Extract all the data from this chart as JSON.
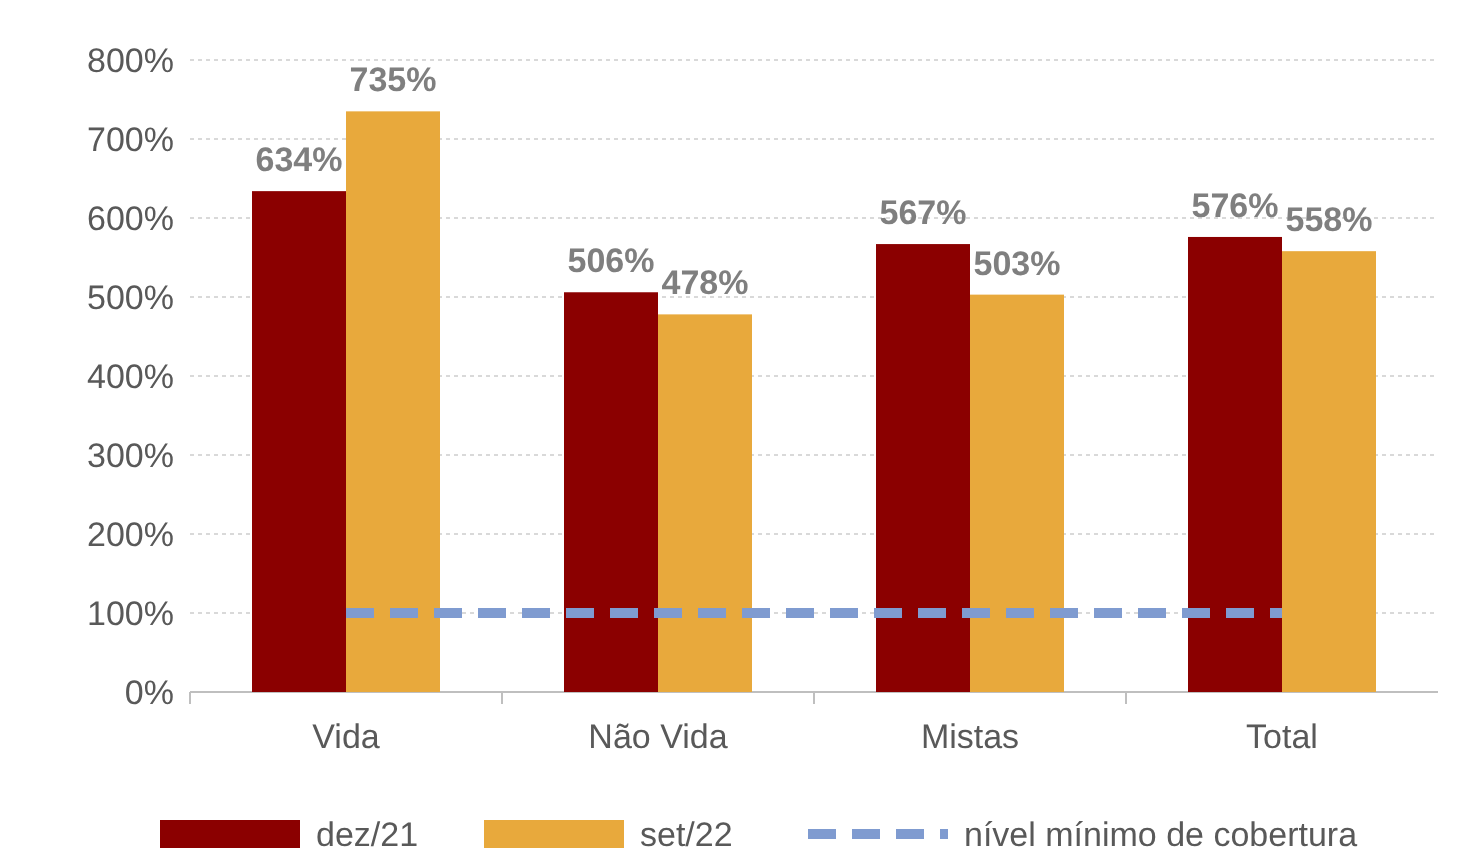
{
  "chart_data": {
    "type": "bar",
    "categories": [
      "Vida",
      "Não Vida",
      "Mistas",
      "Total"
    ],
    "series": [
      {
        "name": "dez/21",
        "color": "#8b0000",
        "values": [
          634,
          506,
          567,
          576
        ]
      },
      {
        "name": "set/22",
        "color": "#e8a93c",
        "values": [
          735,
          478,
          503,
          558
        ]
      },
      {
        "name": "nível mínimo de cobertura",
        "type": "line",
        "color": "#7f9bd0",
        "values": [
          100,
          100,
          100,
          100
        ],
        "line_style": "dashed"
      }
    ],
    "ylim": [
      0,
      800
    ],
    "yticks": [
      {
        "value": 0,
        "label": "0%"
      },
      {
        "value": 100,
        "label": "100%"
      },
      {
        "value": 200,
        "label": "200%"
      },
      {
        "value": 300,
        "label": "300%"
      },
      {
        "value": 400,
        "label": "400%"
      },
      {
        "value": 500,
        "label": "500%"
      },
      {
        "value": 600,
        "label": "600%"
      },
      {
        "value": 700,
        "label": "700%"
      },
      {
        "value": 800,
        "label": "800%"
      }
    ],
    "value_labels": [
      [
        "634%",
        "506%",
        "567%",
        "576%"
      ],
      [
        "735%",
        "478%",
        "503%",
        "558%"
      ],
      [
        null,
        null,
        null,
        null
      ]
    ],
    "grid": "y",
    "legend": "bottom"
  }
}
